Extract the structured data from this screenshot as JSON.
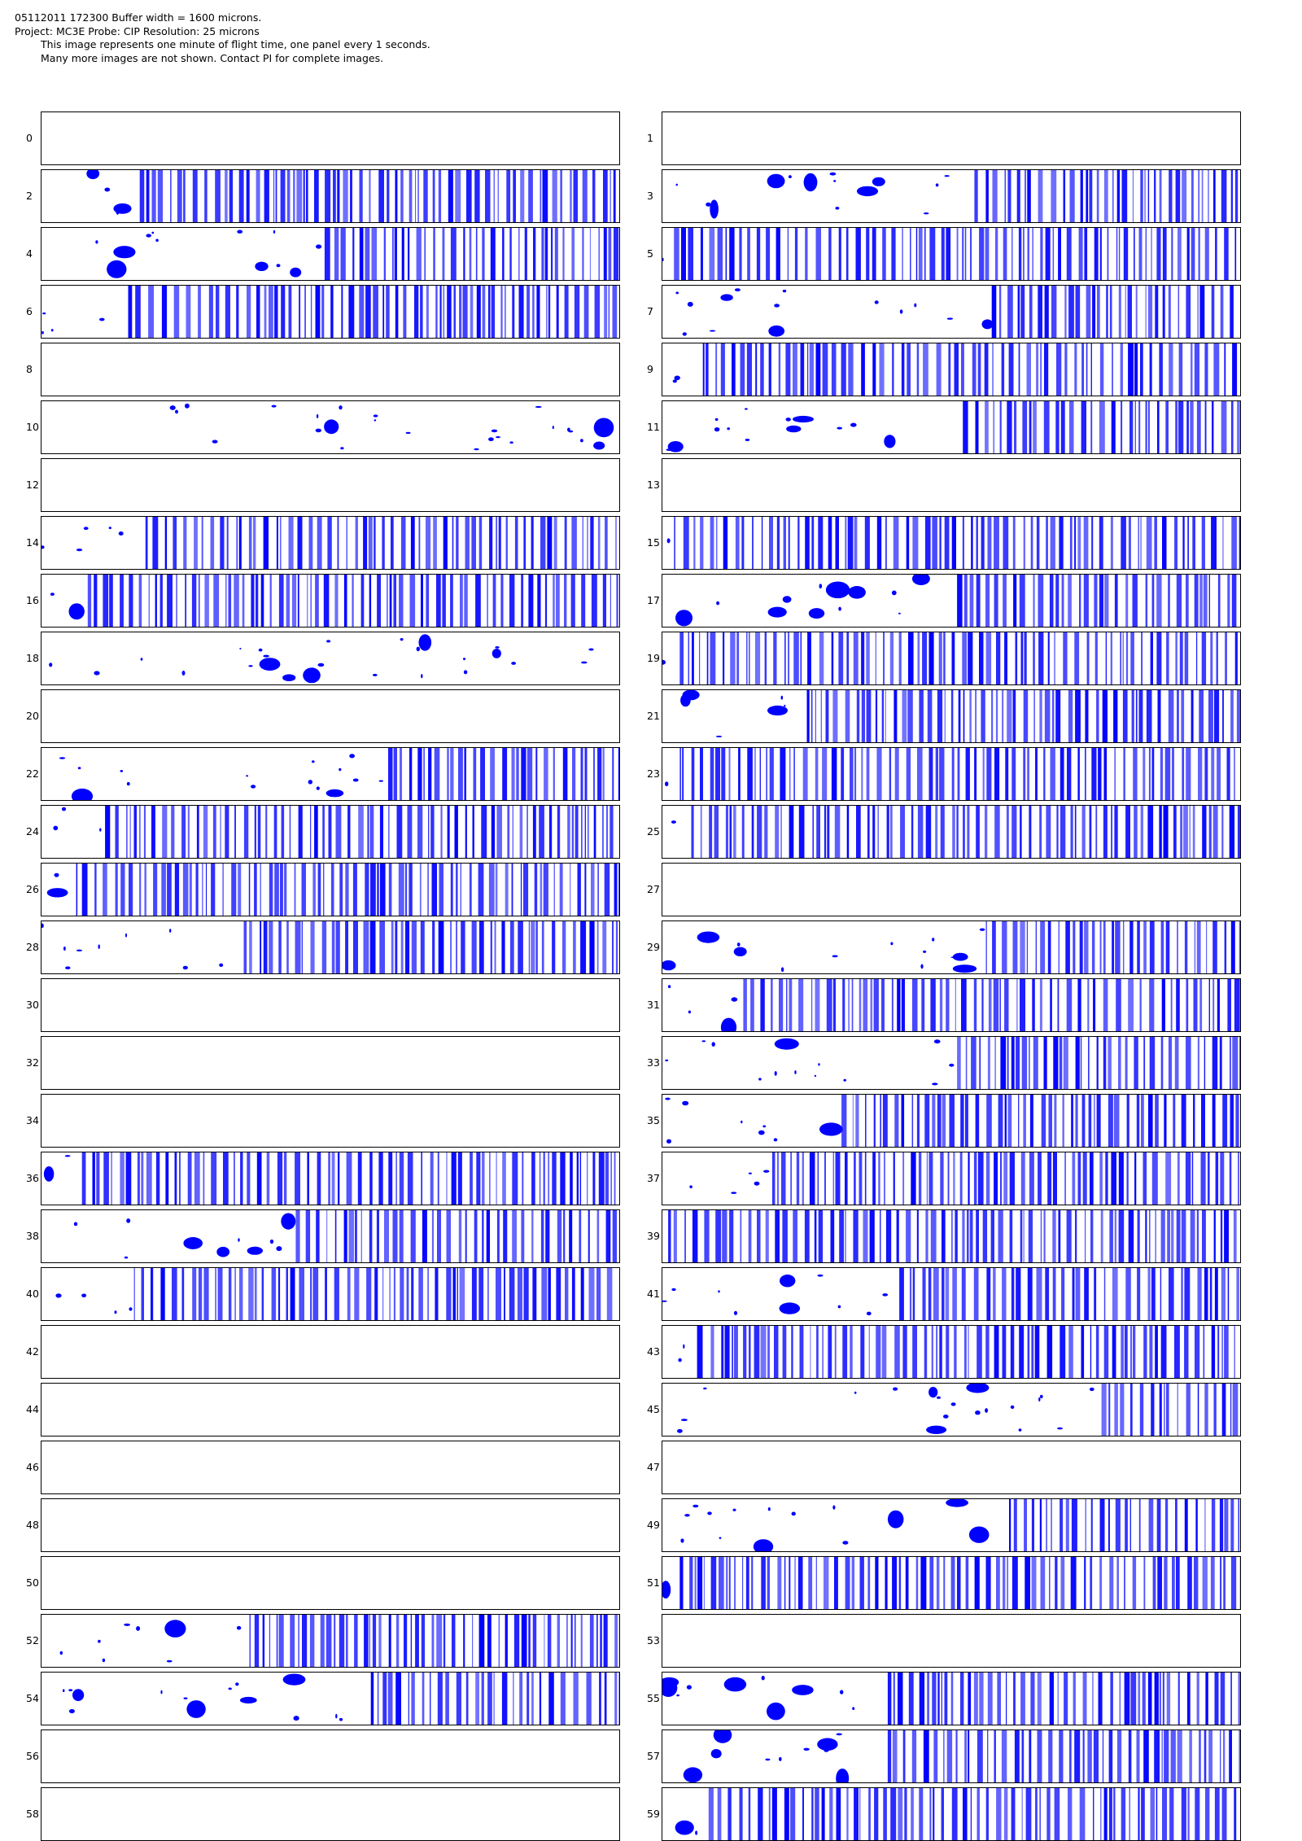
{
  "header": {
    "line1": "05112011 172300  Buffer width = 1600 microns.",
    "line2": "Project: MC3E  Probe: CIP    Resolution: 25 microns",
    "line3": "This image represents one minute of flight time, one panel every 1 seconds.",
    "line4": "Many more images are not shown.  Contact PI for complete images."
  },
  "colors": {
    "particle": "#0000ff",
    "frame": "#000000",
    "background": "#ffffff"
  },
  "panels": [
    {
      "label": "0",
      "empty": true,
      "start": 0
    },
    {
      "label": "1",
      "empty": true,
      "start": 0
    },
    {
      "label": "2",
      "empty": false,
      "start": 0.17
    },
    {
      "label": "3",
      "empty": false,
      "start": 0.54
    },
    {
      "label": "4",
      "empty": false,
      "start": 0.49
    },
    {
      "label": "5",
      "empty": false,
      "start": 0.02
    },
    {
      "label": "6",
      "empty": false,
      "start": 0.15
    },
    {
      "label": "7",
      "empty": false,
      "start": 0.57
    },
    {
      "label": "8",
      "empty": true,
      "start": 0
    },
    {
      "label": "9",
      "empty": false,
      "start": 0.07
    },
    {
      "label": "10",
      "empty": false,
      "start": 1.0
    },
    {
      "label": "11",
      "empty": false,
      "start": 0.52
    },
    {
      "label": "12",
      "empty": true,
      "start": 0
    },
    {
      "label": "13",
      "empty": true,
      "start": 0
    },
    {
      "label": "14",
      "empty": false,
      "start": 0.18
    },
    {
      "label": "15",
      "empty": false,
      "start": 0.02
    },
    {
      "label": "16",
      "empty": false,
      "start": 0.08
    },
    {
      "label": "17",
      "empty": false,
      "start": 0.51
    },
    {
      "label": "18",
      "empty": false,
      "start": 1.0
    },
    {
      "label": "19",
      "empty": false,
      "start": 0.03
    },
    {
      "label": "20",
      "empty": true,
      "start": 0
    },
    {
      "label": "21",
      "empty": false,
      "start": 0.25
    },
    {
      "label": "22",
      "empty": false,
      "start": 0.6
    },
    {
      "label": "23",
      "empty": false,
      "start": 0.03
    },
    {
      "label": "24",
      "empty": false,
      "start": 0.11
    },
    {
      "label": "25",
      "empty": false,
      "start": 0.05
    },
    {
      "label": "26",
      "empty": false,
      "start": 0.06
    },
    {
      "label": "27",
      "empty": true,
      "start": 0
    },
    {
      "label": "28",
      "empty": false,
      "start": 0.35
    },
    {
      "label": "29",
      "empty": false,
      "start": 0.56
    },
    {
      "label": "30",
      "empty": true,
      "start": 0
    },
    {
      "label": "31",
      "empty": false,
      "start": 0.14
    },
    {
      "label": "32",
      "empty": true,
      "start": 0
    },
    {
      "label": "33",
      "empty": false,
      "start": 0.51
    },
    {
      "label": "34",
      "empty": true,
      "start": 0
    },
    {
      "label": "35",
      "empty": false,
      "start": 0.31
    },
    {
      "label": "36",
      "empty": false,
      "start": 0.07
    },
    {
      "label": "37",
      "empty": false,
      "start": 0.19
    },
    {
      "label": "38",
      "empty": false,
      "start": 0.44
    },
    {
      "label": "39",
      "empty": false,
      "start": 0.01
    },
    {
      "label": "40",
      "empty": false,
      "start": 0.16
    },
    {
      "label": "41",
      "empty": false,
      "start": 0.41
    },
    {
      "label": "42",
      "empty": true,
      "start": 0
    },
    {
      "label": "43",
      "empty": false,
      "start": 0.06
    },
    {
      "label": "44",
      "empty": true,
      "start": 0
    },
    {
      "label": "45",
      "empty": false,
      "start": 0.76
    },
    {
      "label": "46",
      "empty": true,
      "start": 0
    },
    {
      "label": "47",
      "empty": true,
      "start": 0
    },
    {
      "label": "48",
      "empty": true,
      "start": 0
    },
    {
      "label": "49",
      "empty": false,
      "start": 0.6
    },
    {
      "label": "50",
      "empty": true,
      "start": 0
    },
    {
      "label": "51",
      "empty": false,
      "start": 0.03
    },
    {
      "label": "52",
      "empty": false,
      "start": 0.36
    },
    {
      "label": "53",
      "empty": true,
      "start": 0
    },
    {
      "label": "54",
      "empty": false,
      "start": 0.57
    },
    {
      "label": "55",
      "empty": false,
      "start": 0.39
    },
    {
      "label": "56",
      "empty": true,
      "start": 0
    },
    {
      "label": "57",
      "empty": false,
      "start": 0.39
    },
    {
      "label": "58",
      "empty": true,
      "start": 0
    },
    {
      "label": "59",
      "empty": false,
      "start": 0.08
    }
  ]
}
